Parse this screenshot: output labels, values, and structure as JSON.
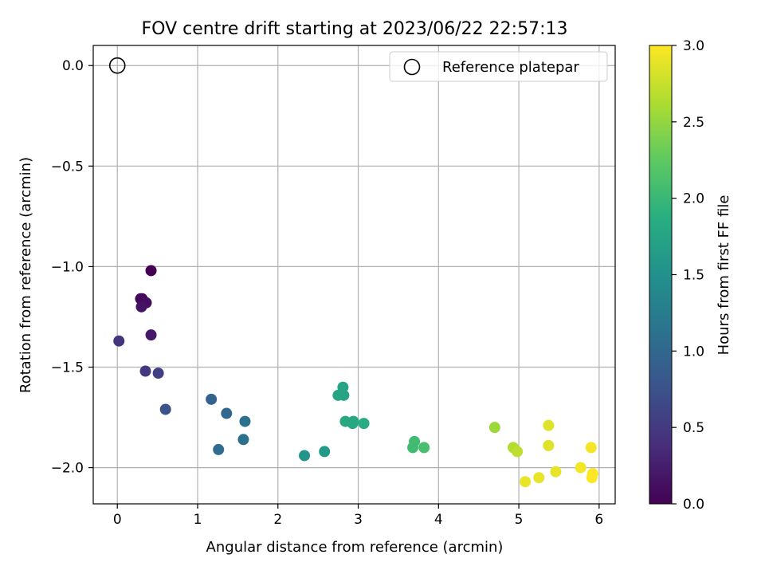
{
  "chart_data": {
    "type": "scatter",
    "title": "FOV centre drift starting at 2023/06/22 22:57:13",
    "xlabel": "Angular distance from reference (arcmin)",
    "ylabel": "Rotation from reference (arcmin)",
    "xlim": [
      -0.3,
      6.2
    ],
    "ylim": [
      -2.18,
      0.1
    ],
    "xticks": [
      0,
      1,
      2,
      3,
      4,
      5,
      6
    ],
    "xtick_labels": [
      "0",
      "1",
      "2",
      "3",
      "4",
      "5",
      "6"
    ],
    "yticks": [
      0.0,
      -0.5,
      -1.0,
      -1.5,
      -2.0
    ],
    "ytick_labels": [
      "0.0",
      "−0.5",
      "−1.0",
      "−1.5",
      "−2.0"
    ],
    "grid": true,
    "legend": {
      "placement": "top-right",
      "entries": [
        {
          "label": "Reference platepar",
          "marker": "open-circle"
        }
      ]
    },
    "reference_point": {
      "x": 0.0,
      "y": 0.0
    },
    "colorbar": {
      "label": "Hours from first FF file",
      "range": [
        0.0,
        3.0
      ],
      "ticks": [
        0.0,
        0.5,
        1.0,
        1.5,
        2.0,
        2.5,
        3.0
      ],
      "tick_labels": [
        "0.0",
        "0.5",
        "1.0",
        "1.5",
        "2.0",
        "2.5",
        "3.0"
      ],
      "colormap": "viridis"
    },
    "points": [
      {
        "x": 0.42,
        "y": -1.02,
        "c": 0.0
      },
      {
        "x": 0.29,
        "y": -1.16,
        "c": 0.05
      },
      {
        "x": 0.31,
        "y": -1.16,
        "c": 0.07
      },
      {
        "x": 0.36,
        "y": -1.18,
        "c": 0.12
      },
      {
        "x": 0.3,
        "y": -1.2,
        "c": 0.15
      },
      {
        "x": 0.42,
        "y": -1.34,
        "c": 0.2
      },
      {
        "x": 0.02,
        "y": -1.37,
        "c": 0.45
      },
      {
        "x": 0.35,
        "y": -1.52,
        "c": 0.5
      },
      {
        "x": 0.51,
        "y": -1.53,
        "c": 0.55
      },
      {
        "x": 0.6,
        "y": -1.71,
        "c": 0.75
      },
      {
        "x": 1.17,
        "y": -1.66,
        "c": 0.95
      },
      {
        "x": 1.36,
        "y": -1.73,
        "c": 1.0
      },
      {
        "x": 1.59,
        "y": -1.77,
        "c": 1.1
      },
      {
        "x": 1.57,
        "y": -1.86,
        "c": 1.1
      },
      {
        "x": 1.26,
        "y": -1.91,
        "c": 1.05
      },
      {
        "x": 2.33,
        "y": -1.94,
        "c": 1.55
      },
      {
        "x": 2.58,
        "y": -1.92,
        "c": 1.6
      },
      {
        "x": 2.81,
        "y": -1.6,
        "c": 1.75
      },
      {
        "x": 2.75,
        "y": -1.64,
        "c": 1.75
      },
      {
        "x": 2.82,
        "y": -1.64,
        "c": 1.75
      },
      {
        "x": 2.84,
        "y": -1.77,
        "c": 1.8
      },
      {
        "x": 2.94,
        "y": -1.77,
        "c": 1.8
      },
      {
        "x": 2.93,
        "y": -1.78,
        "c": 1.8
      },
      {
        "x": 3.07,
        "y": -1.78,
        "c": 1.85
      },
      {
        "x": 3.7,
        "y": -1.87,
        "c": 2.05
      },
      {
        "x": 3.68,
        "y": -1.9,
        "c": 2.05
      },
      {
        "x": 3.82,
        "y": -1.9,
        "c": 2.1
      },
      {
        "x": 4.7,
        "y": -1.8,
        "c": 2.55
      },
      {
        "x": 4.93,
        "y": -1.9,
        "c": 2.65
      },
      {
        "x": 4.98,
        "y": -1.92,
        "c": 2.7
      },
      {
        "x": 5.37,
        "y": -1.79,
        "c": 2.85
      },
      {
        "x": 5.37,
        "y": -1.89,
        "c": 2.85
      },
      {
        "x": 5.9,
        "y": -1.9,
        "c": 2.95
      },
      {
        "x": 5.77,
        "y": -2.0,
        "c": 2.95
      },
      {
        "x": 5.46,
        "y": -2.02,
        "c": 2.9
      },
      {
        "x": 5.92,
        "y": -2.03,
        "c": 3.0
      },
      {
        "x": 5.25,
        "y": -2.05,
        "c": 2.9
      },
      {
        "x": 5.91,
        "y": -2.05,
        "c": 3.0
      },
      {
        "x": 5.08,
        "y": -2.07,
        "c": 2.9
      }
    ]
  }
}
